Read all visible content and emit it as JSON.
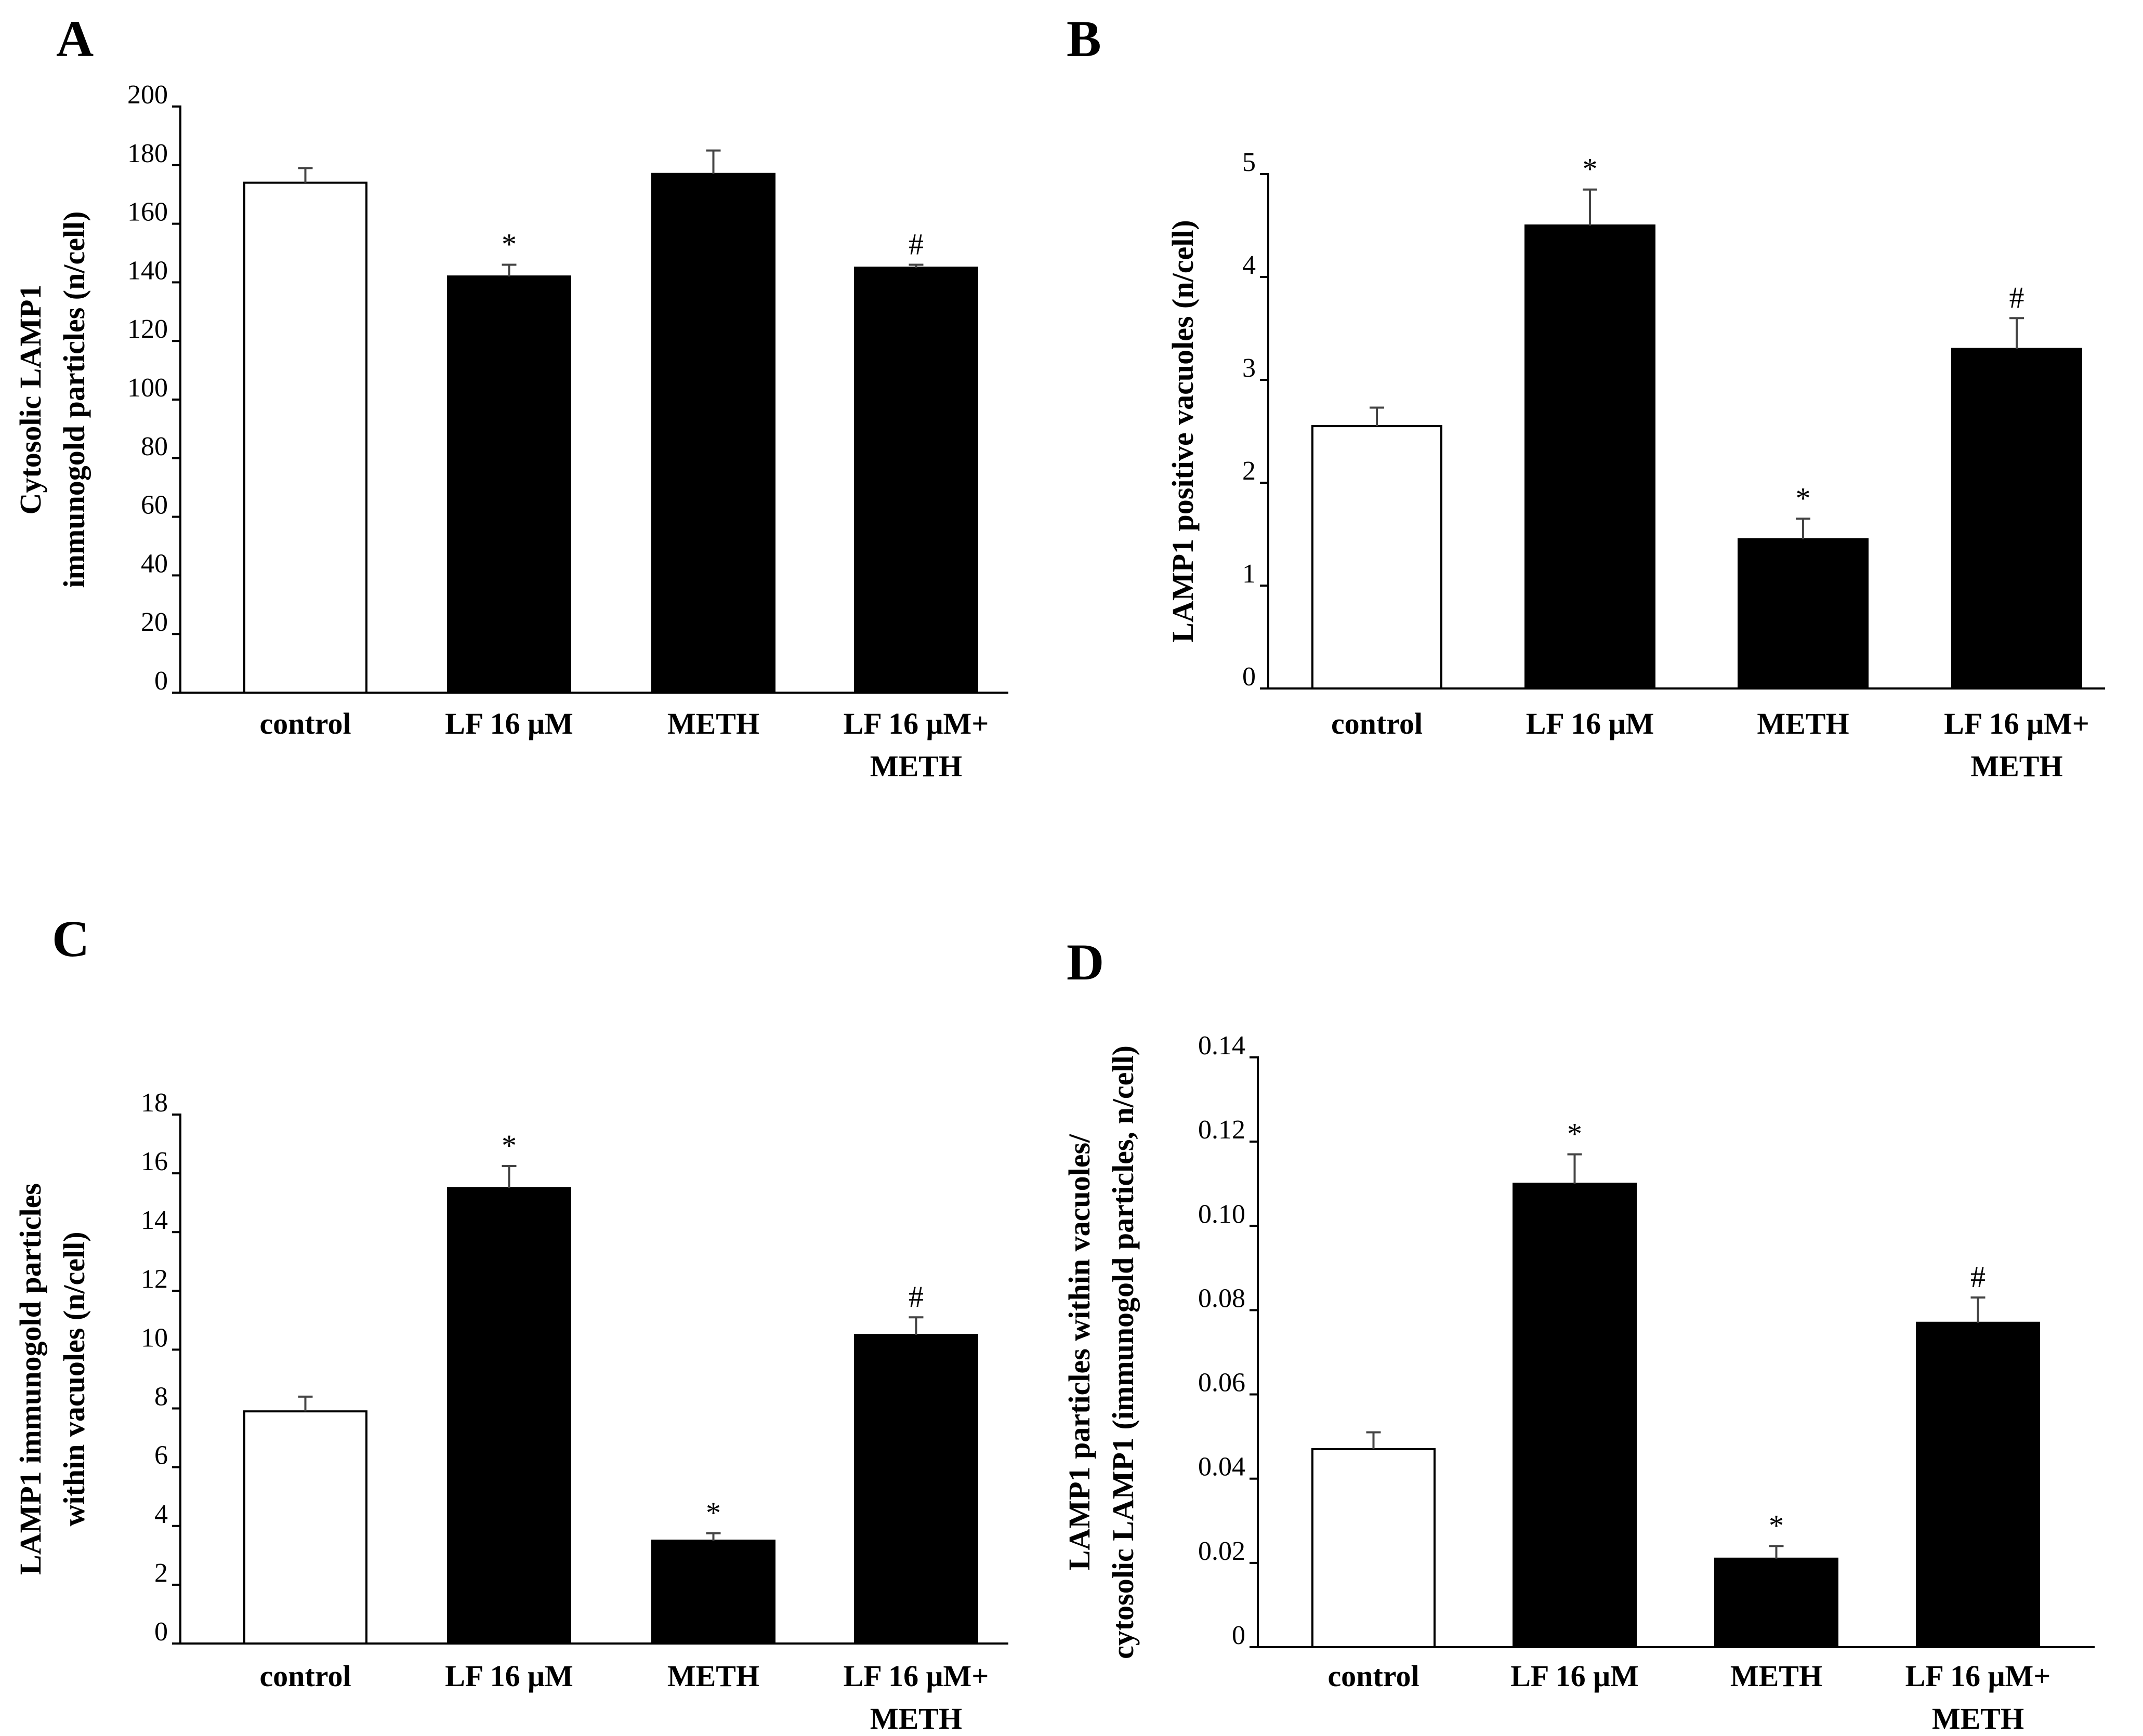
{
  "chart_data": [
    {
      "panel": "A",
      "type": "bar",
      "ylabel": [
        "Cytosolic LAMP1",
        "immunogold particles (n/cell)"
      ],
      "categories": [
        [
          "control"
        ],
        [
          "LF 16 μM"
        ],
        [
          "METH"
        ],
        [
          "LF 16 μM+",
          "METH"
        ]
      ],
      "values": [
        174,
        142,
        177,
        145
      ],
      "errors": [
        5,
        4,
        8,
        1
      ],
      "significance": [
        "",
        "*",
        "",
        "#"
      ],
      "fills": [
        "#ffffff",
        "#000000",
        "#000000",
        "#000000"
      ],
      "ylim": [
        0,
        200
      ],
      "yticks": [
        0,
        20,
        40,
        60,
        80,
        100,
        120,
        140,
        160,
        180,
        200
      ],
      "ytick_labels": [
        "0",
        "20",
        "40",
        "60",
        "80",
        "100",
        "120",
        "140",
        "160",
        "180",
        "200"
      ]
    },
    {
      "panel": "B",
      "type": "bar",
      "ylabel": [
        "LAMP1 positive vacuoles (n/cell)"
      ],
      "categories": [
        [
          "control"
        ],
        [
          "LF 16 μM"
        ],
        [
          "METH"
        ],
        [
          "LF 16 μM+",
          "METH"
        ]
      ],
      "values": [
        2.55,
        4.5,
        1.45,
        3.3
      ],
      "errors": [
        0.18,
        0.35,
        0.2,
        0.3
      ],
      "significance": [
        "",
        "*",
        "*",
        "#"
      ],
      "fills": [
        "#ffffff",
        "#000000",
        "#000000",
        "#000000"
      ],
      "ylim": [
        0,
        5
      ],
      "yticks": [
        0,
        1,
        2,
        3,
        4,
        5
      ],
      "ytick_labels": [
        "0",
        "1",
        "2",
        "3",
        "4",
        "5"
      ]
    },
    {
      "panel": "C",
      "type": "bar",
      "ylabel": [
        "LAMP1 immunogold particles",
        "within vacuoles (n/cell)"
      ],
      "categories": [
        [
          "control"
        ],
        [
          "LF 16 μM"
        ],
        [
          "METH"
        ],
        [
          "LF 16 μM+",
          "METH"
        ]
      ],
      "values": [
        7.9,
        15.5,
        3.5,
        10.5
      ],
      "errors": [
        0.5,
        0.75,
        0.25,
        0.6
      ],
      "significance": [
        "",
        "*",
        "*",
        "#"
      ],
      "fills": [
        "#ffffff",
        "#000000",
        "#000000",
        "#000000"
      ],
      "ylim": [
        0,
        18
      ],
      "yticks": [
        0,
        2,
        4,
        6,
        8,
        10,
        12,
        14,
        16,
        18
      ],
      "ytick_labels": [
        "0",
        "2",
        "4",
        "6",
        "8",
        "10",
        "12",
        "14",
        "16",
        "18"
      ]
    },
    {
      "panel": "D",
      "type": "bar",
      "ylabel": [
        "LAMP1 particles within vacuoles/",
        "cytosolic LAMP1 (immunogold particles, n/cell)"
      ],
      "categories": [
        [
          "control"
        ],
        [
          "LF 16 μM"
        ],
        [
          "METH"
        ],
        [
          "LF 16 μM+",
          "METH"
        ]
      ],
      "values": [
        0.047,
        0.11,
        0.021,
        0.077
      ],
      "errors": [
        0.004,
        0.007,
        0.003,
        0.006
      ],
      "significance": [
        "",
        "*",
        "*",
        "#"
      ],
      "fills": [
        "#ffffff",
        "#000000",
        "#000000",
        "#000000"
      ],
      "ylim": [
        0,
        0.14
      ],
      "yticks": [
        0,
        0.02,
        0.04,
        0.06,
        0.08,
        0.1,
        0.12,
        0.14
      ],
      "ytick_labels": [
        "0",
        "0.02",
        "0.04",
        "0.06",
        "0.08",
        "0.10",
        "0.12",
        "0.14"
      ]
    }
  ]
}
